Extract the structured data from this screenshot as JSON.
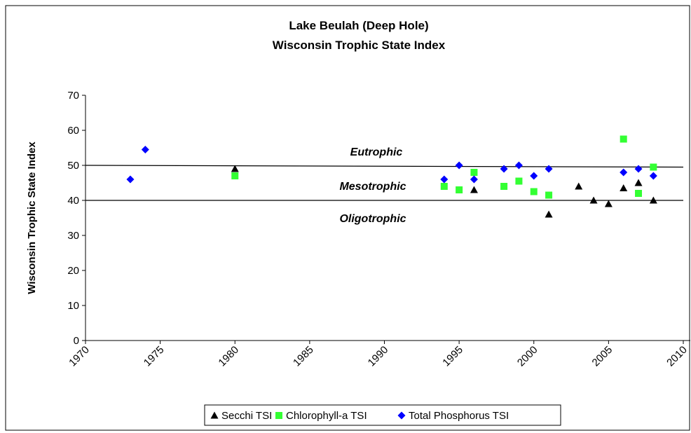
{
  "chart_data": {
    "type": "scatter",
    "title": [
      "Lake Beulah (Deep Hole)",
      "Wisconsin Trophic State Index"
    ],
    "y_label": "Wisconsin Trophic State Index",
    "xlim": [
      1970,
      2010
    ],
    "xticks": [
      1970,
      1975,
      1980,
      1985,
      1990,
      1995,
      2000,
      2005,
      2010
    ],
    "ylim": [
      0,
      70
    ],
    "yticks": [
      0,
      10,
      20,
      30,
      40,
      50,
      60,
      70
    ],
    "legend": "bottom",
    "series": [
      {
        "name": "Secchi TSI",
        "color": "#000000",
        "marker": "triangle",
        "x": [
          1980,
          1996,
          2001,
          2003,
          2004,
          2005,
          2006,
          2007,
          2008
        ],
        "values": [
          49,
          43,
          36,
          44,
          40,
          39,
          43.5,
          45,
          40
        ]
      },
      {
        "name": "Chlorophyll-a TSI",
        "color": "#33ff33",
        "marker": "square",
        "x": [
          1980,
          1994,
          1995,
          1996,
          1998,
          1999,
          2000,
          2001,
          2006,
          2007,
          2008
        ],
        "values": [
          47,
          44,
          43,
          48,
          44,
          45.5,
          42.5,
          41.5,
          57.5,
          42,
          49.5
        ]
      },
      {
        "name": "Total Phosphorus TSI",
        "color": "#0000ff",
        "marker": "diamond",
        "x": [
          1973,
          1974,
          1994,
          1995,
          1996,
          1998,
          1999,
          2000,
          2001,
          2006,
          2007,
          2008
        ],
        "values": [
          46,
          54.5,
          46,
          50,
          46,
          49,
          50,
          47,
          49,
          48,
          49,
          47
        ]
      }
    ],
    "trophic_lines": [
      {
        "x": [
          1970,
          2010
        ],
        "y": [
          50,
          49.5
        ]
      },
      {
        "x": [
          1970,
          2010
        ],
        "y": [
          40,
          40
        ]
      }
    ],
    "annotations": [
      "Eutrophic",
      "Mesotrophic",
      "Oligotrophic"
    ]
  }
}
